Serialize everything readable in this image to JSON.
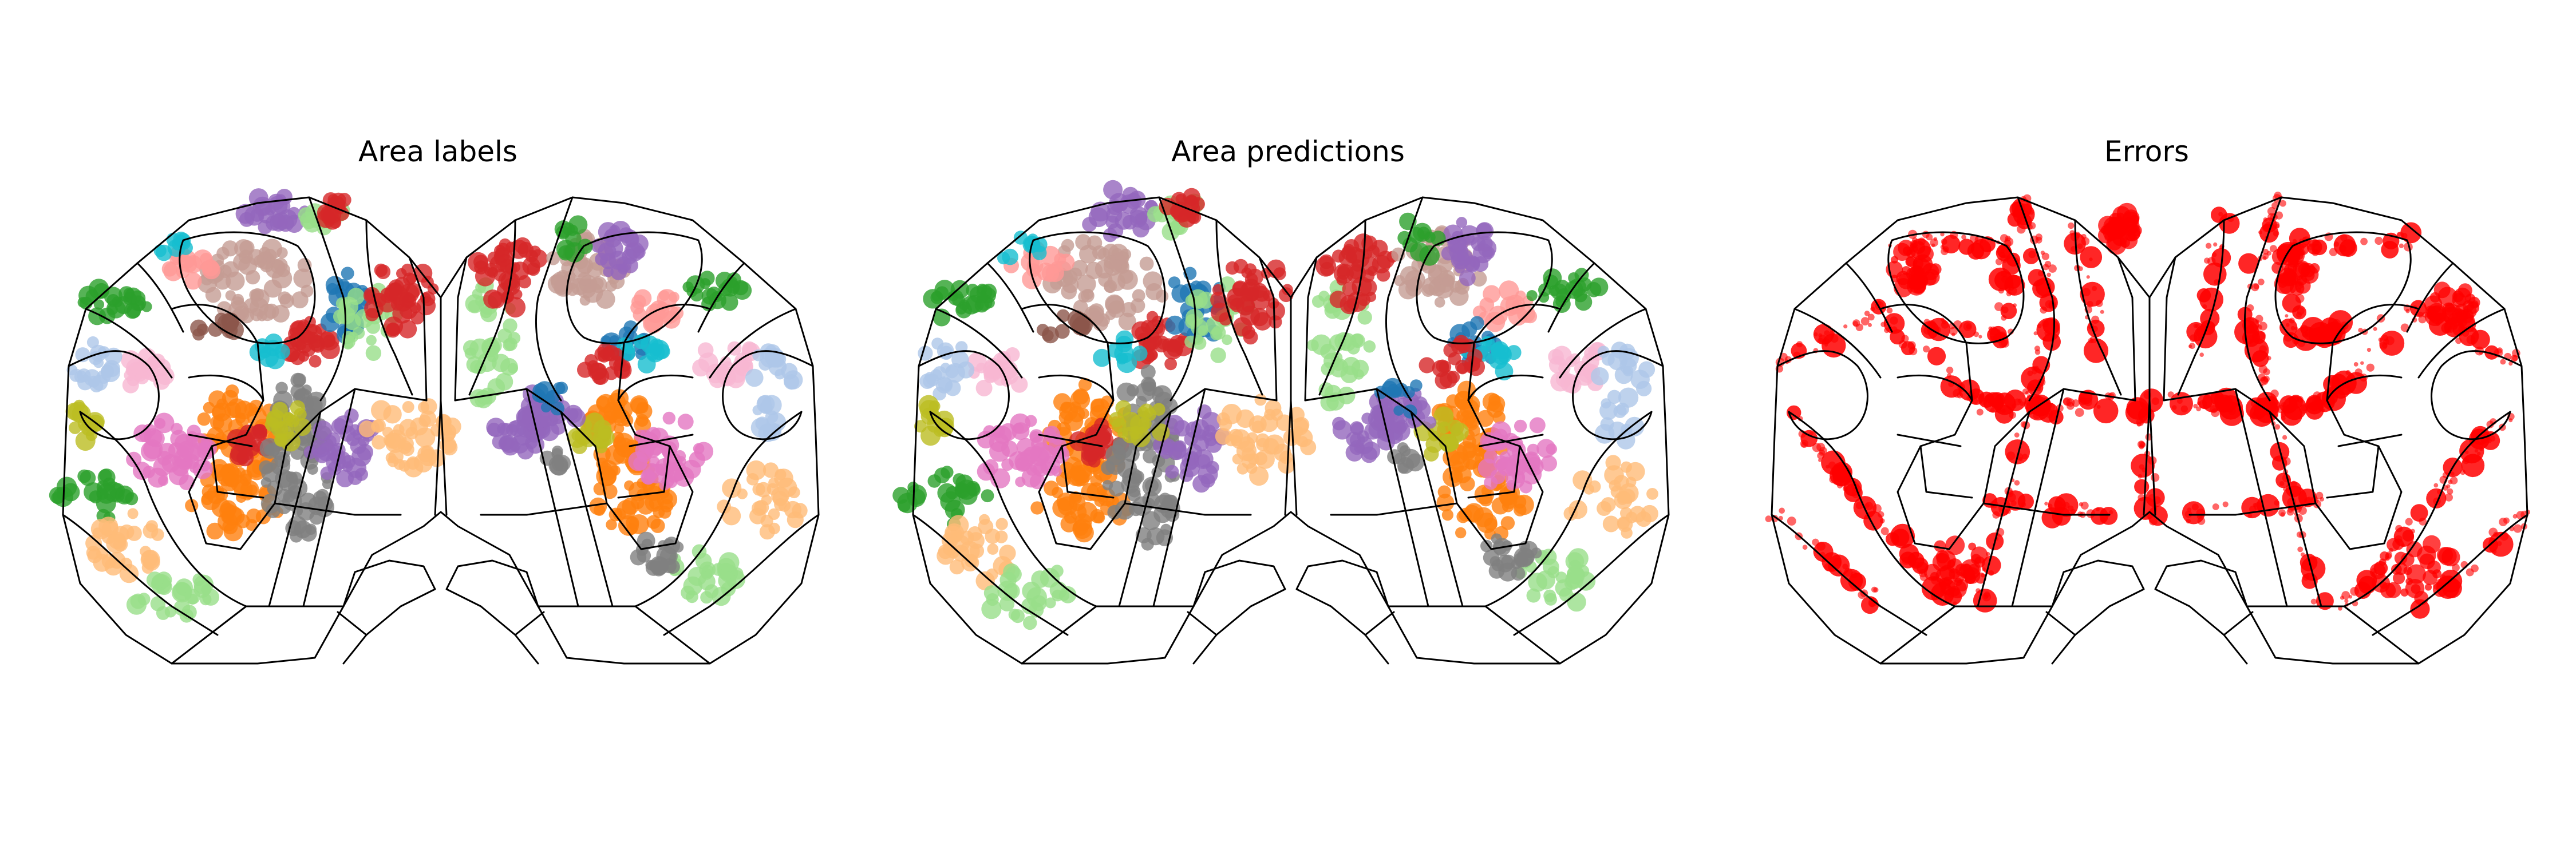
{
  "figure": {
    "panels": [
      {
        "id": "labels",
        "title": "Area labels"
      },
      {
        "id": "predictions",
        "title": "Area predictions"
      },
      {
        "id": "errors",
        "title": "Errors"
      }
    ]
  },
  "palette": {
    "red": "#d62728",
    "brown": "#c49c94",
    "purple": "#9467bd",
    "green": "#2ca02c",
    "light_green": "#98df8a",
    "orange": "#ff7f0e",
    "light_orange": "#ffbb78",
    "pink": "#e377c2",
    "light_pink": "#f7b6d2",
    "gray": "#7f7f7f",
    "olive": "#bcbd22",
    "cyan": "#17becf",
    "blue": "#1f77b4",
    "light_blue": "#aec7e8",
    "salmon": "#ff9896",
    "dark_brown": "#8c564b",
    "error_red": "#ff0000"
  }
}
